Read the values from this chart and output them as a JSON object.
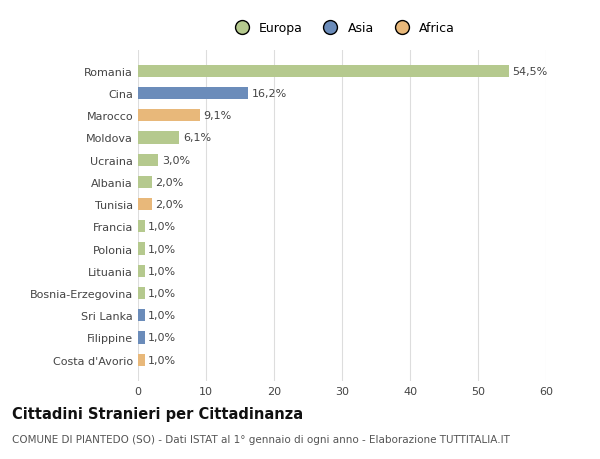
{
  "countries": [
    "Romania",
    "Cina",
    "Marocco",
    "Moldova",
    "Ucraina",
    "Albania",
    "Tunisia",
    "Francia",
    "Polonia",
    "Lituania",
    "Bosnia-Erzegovina",
    "Sri Lanka",
    "Filippine",
    "Costa d'Avorio"
  ],
  "values": [
    54.5,
    16.2,
    9.1,
    6.1,
    3.0,
    2.0,
    2.0,
    1.0,
    1.0,
    1.0,
    1.0,
    1.0,
    1.0,
    1.0
  ],
  "labels": [
    "54,5%",
    "16,2%",
    "9,1%",
    "6,1%",
    "3,0%",
    "2,0%",
    "2,0%",
    "1,0%",
    "1,0%",
    "1,0%",
    "1,0%",
    "1,0%",
    "1,0%",
    "1,0%"
  ],
  "continents": [
    "Europa",
    "Asia",
    "Africa",
    "Europa",
    "Europa",
    "Europa",
    "Africa",
    "Europa",
    "Europa",
    "Europa",
    "Europa",
    "Asia",
    "Asia",
    "Africa"
  ],
  "colors": {
    "Europa": "#b5c98e",
    "Asia": "#6b8cba",
    "Africa": "#e8b87a"
  },
  "xlim": [
    0,
    60
  ],
  "xticks": [
    0,
    10,
    20,
    30,
    40,
    50,
    60
  ],
  "background_color": "#ffffff",
  "plot_bg_color": "#ffffff",
  "title": "Cittadini Stranieri per Cittadinanza",
  "subtitle": "COMUNE DI PIANTEDO (SO) - Dati ISTAT al 1° gennaio di ogni anno - Elaborazione TUTTITALIA.IT",
  "grid_color": "#dddddd",
  "bar_height": 0.55,
  "label_fontsize": 8,
  "tick_fontsize": 8,
  "title_fontsize": 10.5,
  "subtitle_fontsize": 7.5
}
